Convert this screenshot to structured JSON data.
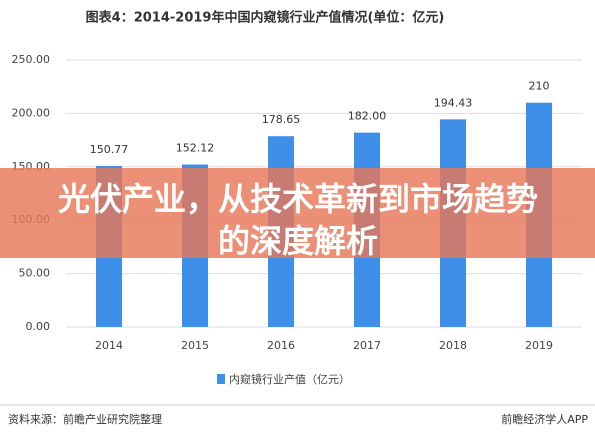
{
  "chart_data": {
    "type": "bar",
    "title": "图表4：2014-2019年中国内窥镜行业产值情况(单位：亿元)",
    "categories": [
      "2014",
      "2015",
      "2016",
      "2017",
      "2018",
      "2019"
    ],
    "series": [
      {
        "name": "内窥镜行业产值（亿元）",
        "color": "#3d8fe8",
        "values": [
          150.77,
          152.12,
          178.65,
          182,
          194.43,
          210
        ],
        "value_labels": [
          "150.77",
          "152.12",
          "178.65",
          "182.00",
          "194.43",
          "210"
        ]
      }
    ],
    "ylim": [
      0,
      250
    ],
    "yticks": [
      {
        "value": 0,
        "label": "0.00"
      },
      {
        "value": 50,
        "label": "50.00"
      },
      {
        "value": 100,
        "label": "100.00"
      },
      {
        "value": 150,
        "label": "150.00"
      },
      {
        "value": 200,
        "label": "200.00"
      },
      {
        "value": 250,
        "label": "250.00"
      }
    ],
    "grid": true,
    "legend": "bottom",
    "source": "资料来源：前瞻产业研究院整理",
    "brand": "前瞻经济学人APP"
  },
  "overlay": {
    "headline": "光伏产业，从技术革新到市场趋势的深度解析"
  }
}
